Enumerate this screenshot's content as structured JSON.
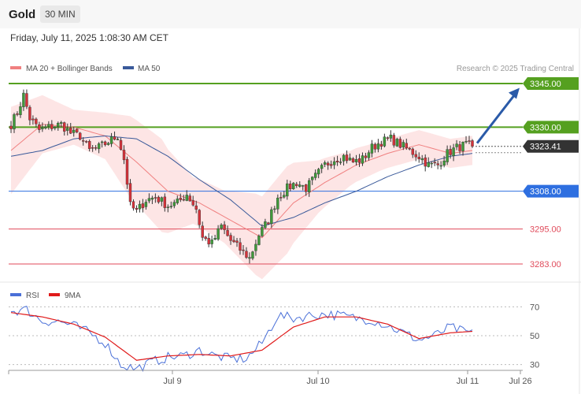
{
  "header": {
    "title": "Gold",
    "timeframe": "30 MIN"
  },
  "date_text": "Friday, July 11, 2025 1:08:30 AM CET",
  "credit": "Research © 2025 Trading Central",
  "colors": {
    "bull": "#3f9a3a",
    "bear": "#d6323a",
    "ma20": "#f08080",
    "ma50": "#3a5a9a",
    "band": "#fde0e0",
    "resistance": "#55a020",
    "pivot": "#2e6fe0",
    "support": "#e04a5a",
    "current": "#333333",
    "arrow": "#2a5aa8",
    "rsi": "#4a70d8",
    "rsi_ma": "#e01a1a"
  },
  "chart_data": [
    {
      "type": "candlestick",
      "legend": [
        {
          "name": "MA 20 + Bollinger Bands",
          "color": "#f08080"
        },
        {
          "name": "MA 50",
          "color": "#3a5a9a"
        }
      ],
      "legend_position": "top-left",
      "ylim": [
        3280,
        3350
      ],
      "grid": false,
      "levels": [
        {
          "label": "3345.00",
          "value": 3345.0,
          "kind": "resistance"
        },
        {
          "label": "3330.00",
          "value": 3330.0,
          "kind": "resistance"
        },
        {
          "label": "3323.41",
          "value": 3323.41,
          "kind": "current"
        },
        {
          "label": "3308.00",
          "value": 3308.0,
          "kind": "pivot"
        },
        {
          "label": "3295.00",
          "value": 3295.0,
          "kind": "support"
        },
        {
          "label": "3283.00",
          "value": 3283.0,
          "kind": "support"
        }
      ],
      "x_ticks": [
        "Jul 9",
        "Jul 10",
        "Jul 11",
        "Jul 26"
      ],
      "annotation": {
        "type": "arrow",
        "from_price": 3324.5,
        "to_price": 3343.5,
        "direction": "up"
      },
      "anchors": [
        [
          0,
          3331
        ],
        [
          2,
          3335
        ],
        [
          4,
          3341
        ],
        [
          6,
          3333
        ],
        [
          9,
          3329
        ],
        [
          12,
          3330
        ],
        [
          16,
          3331
        ],
        [
          19,
          3328
        ],
        [
          22,
          3327
        ],
        [
          25,
          3322
        ],
        [
          28,
          3323
        ],
        [
          31,
          3325
        ],
        [
          34,
          3327
        ],
        [
          36,
          3319
        ],
        [
          38,
          3303
        ],
        [
          40,
          3301
        ],
        [
          43,
          3305
        ],
        [
          46,
          3306
        ],
        [
          50,
          3303
        ],
        [
          53,
          3304
        ],
        [
          56,
          3307
        ],
        [
          59,
          3302
        ],
        [
          61,
          3292
        ],
        [
          64,
          3290
        ],
        [
          67,
          3296
        ],
        [
          70,
          3291
        ],
        [
          73,
          3288
        ],
        [
          76,
          3285
        ],
        [
          79,
          3293
        ],
        [
          82,
          3298
        ],
        [
          85,
          3306
        ],
        [
          88,
          3309
        ],
        [
          91,
          3311
        ],
        [
          94,
          3309
        ],
        [
          97,
          3313
        ],
        [
          100,
          3317
        ],
        [
          103,
          3319
        ],
        [
          106,
          3320
        ],
        [
          109,
          3318
        ],
        [
          112,
          3319
        ],
        [
          115,
          3323
        ],
        [
          118,
          3325
        ],
        [
          121,
          3326
        ],
        [
          124,
          3324
        ],
        [
          127,
          3322
        ],
        [
          130,
          3320
        ],
        [
          133,
          3317
        ],
        [
          136,
          3317
        ],
        [
          139,
          3321
        ],
        [
          142,
          3323
        ],
        [
          145,
          3324
        ],
        [
          147,
          3323.41
        ]
      ],
      "ma20_anchors": [
        [
          0,
          3322
        ],
        [
          10,
          3331
        ],
        [
          20,
          3330
        ],
        [
          30,
          3327
        ],
        [
          40,
          3318
        ],
        [
          50,
          3308
        ],
        [
          60,
          3304
        ],
        [
          70,
          3298
        ],
        [
          80,
          3292
        ],
        [
          90,
          3304
        ],
        [
          100,
          3311
        ],
        [
          110,
          3317
        ],
        [
          120,
          3321
        ],
        [
          130,
          3324
        ],
        [
          140,
          3321
        ],
        [
          147,
          3322
        ]
      ],
      "ma50_anchors": [
        [
          0,
          3320
        ],
        [
          10,
          3322
        ],
        [
          20,
          3326
        ],
        [
          30,
          3327
        ],
        [
          40,
          3326
        ],
        [
          50,
          3320
        ],
        [
          60,
          3312
        ],
        [
          70,
          3305
        ],
        [
          80,
          3296
        ],
        [
          90,
          3299
        ],
        [
          100,
          3304
        ],
        [
          110,
          3308
        ],
        [
          120,
          3313
        ],
        [
          130,
          3317
        ],
        [
          140,
          3320
        ],
        [
          147,
          3321
        ]
      ],
      "band_width_anchors": [
        [
          0,
          15
        ],
        [
          10,
          10
        ],
        [
          20,
          6
        ],
        [
          30,
          8
        ],
        [
          38,
          14
        ],
        [
          48,
          16
        ],
        [
          58,
          8
        ],
        [
          68,
          9
        ],
        [
          78,
          14
        ],
        [
          88,
          15
        ],
        [
          98,
          9
        ],
        [
          108,
          6
        ],
        [
          118,
          5
        ],
        [
          130,
          5
        ],
        [
          147,
          5
        ]
      ]
    },
    {
      "type": "line",
      "legend": [
        {
          "name": "RSI",
          "color": "#4a70d8"
        },
        {
          "name": "9MA",
          "color": "#e01a1a"
        }
      ],
      "legend_position": "top-left",
      "ylim": [
        20,
        80
      ],
      "y_ticks": [
        "70",
        "50",
        "30"
      ],
      "grid": true,
      "rsi_anchors": [
        [
          0,
          67
        ],
        [
          5,
          68
        ],
        [
          10,
          60
        ],
        [
          15,
          60
        ],
        [
          20,
          57
        ],
        [
          25,
          52
        ],
        [
          30,
          45
        ],
        [
          35,
          30
        ],
        [
          40,
          27
        ],
        [
          45,
          32
        ],
        [
          50,
          35
        ],
        [
          55,
          36
        ],
        [
          60,
          40
        ],
        [
          65,
          36
        ],
        [
          70,
          34
        ],
        [
          75,
          34
        ],
        [
          80,
          45
        ],
        [
          85,
          64
        ],
        [
          90,
          62
        ],
        [
          95,
          64
        ],
        [
          100,
          65
        ],
        [
          105,
          64
        ],
        [
          110,
          62
        ],
        [
          115,
          61
        ],
        [
          120,
          57
        ],
        [
          125,
          52
        ],
        [
          130,
          47
        ],
        [
          135,
          50
        ],
        [
          140,
          56
        ],
        [
          145,
          52
        ],
        [
          147,
          53
        ]
      ],
      "ma9_anchors": [
        [
          0,
          66
        ],
        [
          10,
          63
        ],
        [
          20,
          58
        ],
        [
          30,
          49
        ],
        [
          40,
          33
        ],
        [
          50,
          36
        ],
        [
          60,
          37
        ],
        [
          70,
          36
        ],
        [
          80,
          40
        ],
        [
          90,
          56
        ],
        [
          100,
          63
        ],
        [
          110,
          63
        ],
        [
          120,
          58
        ],
        [
          130,
          48
        ],
        [
          140,
          52
        ],
        [
          147,
          53
        ]
      ]
    }
  ]
}
